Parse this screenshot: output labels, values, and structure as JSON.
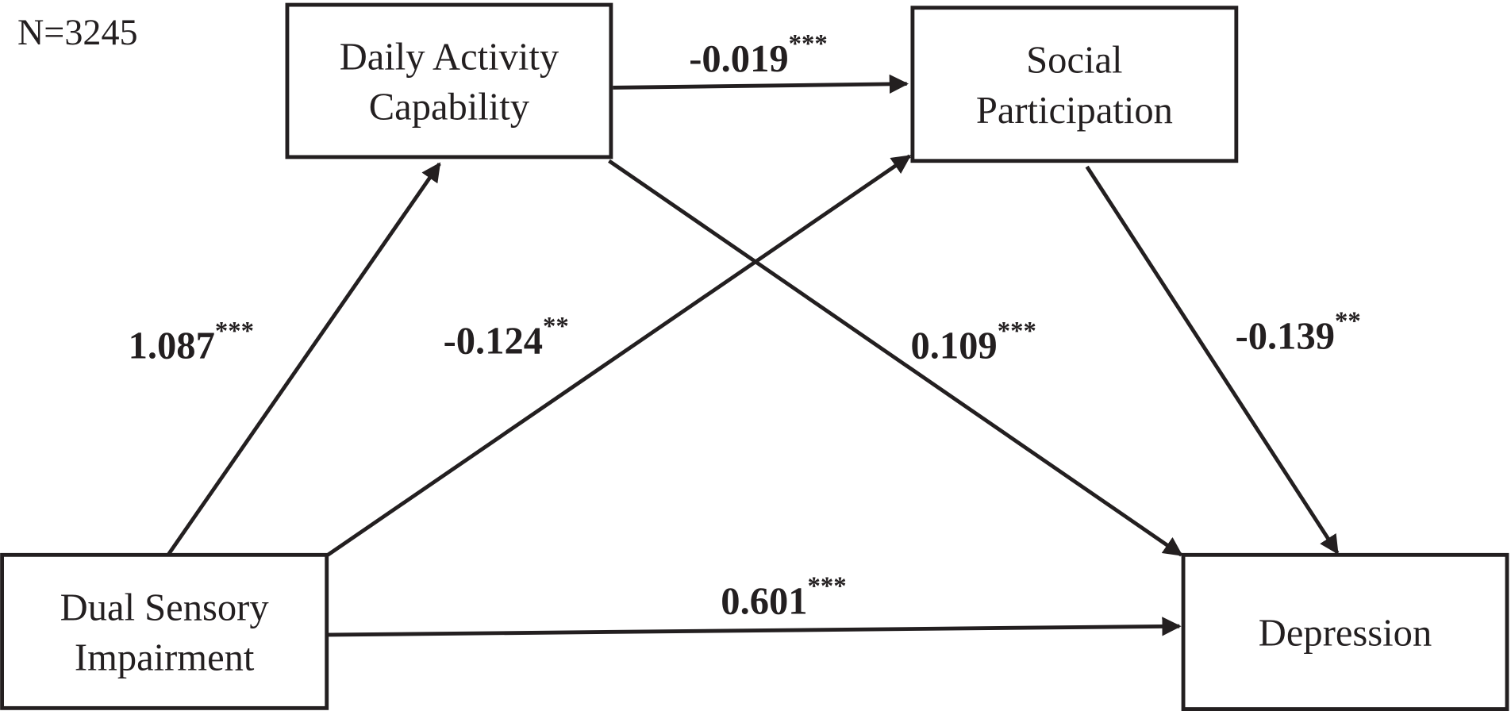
{
  "note": "N=3245",
  "nodes": [
    {
      "label": [
        "Daily Activity",
        "Capability"
      ]
    },
    {
      "label": [
        "Social",
        "Participation"
      ]
    },
    {
      "label": [
        "Dual Sensory",
        "Impairment"
      ]
    },
    {
      "label": [
        "Depression"
      ]
    }
  ],
  "edges": [
    {
      "from": "Dual Sensory Impairment",
      "to": "Daily Activity Capability",
      "coefficient": "1.087",
      "significance": "***"
    },
    {
      "from": "Dual Sensory Impairment",
      "to": "Social Participation",
      "coefficient": "-0.124",
      "significance": "**"
    },
    {
      "from": "Daily Activity Capability",
      "to": "Social Participation",
      "coefficient": "-0.019",
      "significance": "***"
    },
    {
      "from": "Daily Activity Capability",
      "to": "Depression",
      "coefficient": "0.109",
      "significance": "***"
    },
    {
      "from": "Social Participation",
      "to": "Depression",
      "coefficient": "-0.139",
      "significance": "**"
    },
    {
      "from": "Dual Sensory Impairment",
      "to": "Depression",
      "coefficient": "0.601",
      "significance": "***"
    }
  ]
}
